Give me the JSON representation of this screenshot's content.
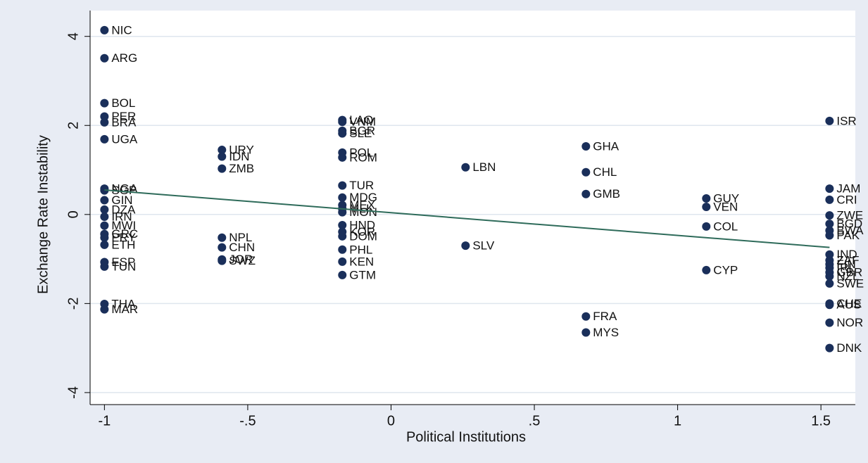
{
  "chart_data": {
    "type": "scatter",
    "xlabel": "Political Institutions",
    "ylabel": "Exchange Rate Instability",
    "labels": [
      "NIC",
      "ARG",
      "BOL",
      "PER",
      "BRA",
      "UGA",
      "NGA",
      "SGP",
      "GIN",
      "DZA",
      "IRN",
      "MWI",
      "GRC",
      "PRY",
      "ETH",
      "ESP",
      "TUN",
      "THA",
      "MAR",
      "URY",
      "IDN",
      "ZMB",
      "NPL",
      "CHN",
      "JOR",
      "SWZ",
      "LAO",
      "VNM",
      "BGR",
      "SLE",
      "POL",
      "ROM",
      "TUR",
      "MDG",
      "MEX",
      "MLI",
      "MON",
      "HND",
      "KOR",
      "DOM",
      "PHL",
      "KEN",
      "GTM",
      "LBN",
      "SLV",
      "GHA",
      "CHL",
      "GMB",
      "FRA",
      "MYS",
      "GUY",
      "VEN",
      "COL",
      "CYP",
      "ISR",
      "JAM",
      "CRI",
      "ZWE",
      "BGD",
      "BWA",
      "PAK",
      "IND",
      "ZAF",
      "FIN",
      "IRL",
      "GBR",
      "NZL",
      "SWE",
      "CHE",
      "AUS",
      "NOR",
      "DNK"
    ],
    "x": [
      -1,
      -1,
      -1,
      -1,
      -1,
      -1,
      -1,
      -1,
      -1,
      -1,
      -1,
      -1,
      -1,
      -1,
      -1,
      -1,
      -1,
      -1,
      -1,
      -0.59,
      -0.59,
      -0.59,
      -0.59,
      -0.59,
      -0.59,
      -0.59,
      -0.17,
      -0.17,
      -0.17,
      -0.17,
      -0.17,
      -0.17,
      -0.17,
      -0.17,
      -0.17,
      -0.17,
      -0.17,
      -0.17,
      -0.17,
      -0.17,
      -0.17,
      -0.17,
      -0.17,
      0.26,
      0.26,
      0.68,
      0.68,
      0.68,
      0.68,
      0.68,
      1.1,
      1.1,
      1.1,
      1.1,
      1.53,
      1.53,
      1.53,
      1.53,
      1.53,
      1.53,
      1.53,
      1.53,
      1.53,
      1.53,
      1.53,
      1.53,
      1.53,
      1.53,
      1.53,
      1.53,
      1.53,
      1.53
    ],
    "y": [
      4.14,
      3.51,
      2.5,
      2.2,
      2.07,
      1.69,
      0.58,
      0.54,
      0.32,
      0.11,
      -0.05,
      -0.25,
      -0.44,
      -0.52,
      -0.68,
      -1.07,
      -1.17,
      -2.01,
      -2.13,
      1.45,
      1.3,
      1.03,
      -0.52,
      -0.74,
      -1.01,
      -1.04,
      2.12,
      2.08,
      1.88,
      1.82,
      1.39,
      1.28,
      0.65,
      0.38,
      0.21,
      0.13,
      0.05,
      -0.24,
      -0.39,
      -0.49,
      -0.79,
      -1.06,
      -1.36,
      1.06,
      -0.7,
      1.53,
      0.95,
      0.46,
      -2.29,
      -2.65,
      0.36,
      0.17,
      -0.27,
      -1.25,
      2.1,
      0.58,
      0.33,
      -0.02,
      -0.21,
      -0.36,
      -0.47,
      -0.9,
      -1.03,
      -1.12,
      -1.2,
      -1.3,
      -1.39,
      -1.55,
      -2.0,
      -2.03,
      -2.43,
      -3.0
    ],
    "color": "#1a2f5a",
    "fit": {
      "x": [
        -1,
        1.53
      ],
      "y": [
        0.55,
        -0.74
      ],
      "color": "#2e6b5a"
    },
    "xlim": [
      -1.05,
      1.62
    ],
    "ylim": [
      -4.27,
      4.58
    ],
    "xticks": [
      {
        "value": -1,
        "label": "-1"
      },
      {
        "value": -0.5,
        "label": "-.5"
      },
      0,
      {
        "value": 0.5,
        "label": ".5"
      },
      1,
      1.5
    ],
    "yticks": [
      -4,
      -2,
      0,
      2,
      4
    ],
    "grid": true
  }
}
